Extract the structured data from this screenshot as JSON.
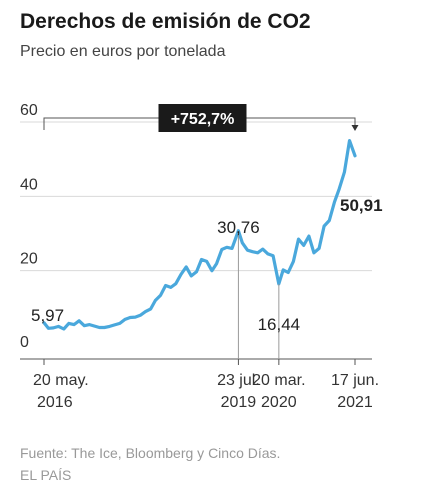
{
  "header": {
    "title": "Derechos de emisión de CO2",
    "subtitle": "Precio en euros por tonelada"
  },
  "footer": {
    "source": "Fuente: The Ice, Bloomberg y Cinco Días.",
    "publisher": "EL PAÍS"
  },
  "colors": {
    "line": "#4aa8dc",
    "badge": "#1a1a1a",
    "grid": "#d9d9d9",
    "axis": "#555555"
  },
  "chart_data": {
    "type": "line",
    "title": "Derechos de emisión de CO2",
    "subtitle": "Precio en euros por tonelada",
    "xlabel": "",
    "ylabel": "",
    "ylim": [
      0,
      60
    ],
    "yticks": [
      0,
      20,
      40,
      60
    ],
    "grid": true,
    "xlim": [
      "2016-05-20",
      "2021-06-17"
    ],
    "xticks": [
      {
        "date": "2016-05-20",
        "line1": "20 may.",
        "line2": "2016"
      },
      {
        "date": "2019-07-23",
        "line1": "23 jul.",
        "line2": "2019"
      },
      {
        "date": "2020-03-20",
        "line1": "20 mar.",
        "line2": "2020"
      },
      {
        "date": "2021-06-17",
        "line1": "17 jun.",
        "line2": "2021"
      }
    ],
    "series": [
      {
        "x": [
          "2016-05-20",
          "2016-06-15",
          "2016-07-15",
          "2016-08-15",
          "2016-09-15",
          "2016-10-15",
          "2016-11-15",
          "2016-12-15",
          "2017-01-15",
          "2017-02-15",
          "2017-03-15",
          "2017-04-15",
          "2017-05-15",
          "2017-06-15",
          "2017-07-15",
          "2017-08-15",
          "2017-09-15",
          "2017-10-15",
          "2017-11-15",
          "2017-12-15",
          "2018-01-15",
          "2018-02-15",
          "2018-03-15",
          "2018-04-15",
          "2018-05-15",
          "2018-06-15",
          "2018-07-15",
          "2018-08-15",
          "2018-09-15",
          "2018-10-15",
          "2018-11-15",
          "2018-12-15",
          "2019-01-15",
          "2019-02-15",
          "2019-03-15",
          "2019-04-15",
          "2019-05-15",
          "2019-06-15",
          "2019-07-23",
          "2019-08-15",
          "2019-09-15",
          "2019-10-15",
          "2019-11-15",
          "2019-12-15",
          "2020-01-15",
          "2020-02-15",
          "2020-03-20",
          "2020-04-15",
          "2020-05-15",
          "2020-06-15",
          "2020-07-15",
          "2020-08-15",
          "2020-09-15",
          "2020-10-15",
          "2020-11-15",
          "2020-12-15",
          "2021-01-15",
          "2021-02-15",
          "2021-03-15",
          "2021-04-15",
          "2021-05-15",
          "2021-06-17"
        ],
        "values": [
          5.97,
          4.5,
          4.6,
          5.0,
          4.3,
          5.8,
          5.5,
          6.5,
          5.2,
          5.5,
          5.1,
          4.7,
          4.7,
          5.0,
          5.4,
          5.8,
          6.9,
          7.4,
          7.5,
          8.0,
          9.0,
          9.7,
          12.0,
          13.4,
          16.0,
          15.5,
          16.5,
          19.0,
          21.0,
          18.6,
          19.7,
          23.0,
          22.5,
          20.0,
          21.9,
          25.7,
          26.3,
          26.0,
          30.76,
          27.5,
          25.5,
          25.1,
          24.8,
          25.8,
          24.5,
          24.0,
          16.44,
          20.2,
          19.5,
          22.5,
          28.5,
          26.8,
          29.3,
          24.8,
          26.0,
          32.0,
          33.5,
          38.5,
          42.0,
          46.5,
          55.0,
          50.91
        ]
      }
    ],
    "annotations": [
      {
        "date": "2016-05-20",
        "value": 5.97,
        "label": "5,97"
      },
      {
        "date": "2019-07-23",
        "value": 30.76,
        "label": "30,76"
      },
      {
        "date": "2020-03-20",
        "value": 16.44,
        "label": "16,44"
      },
      {
        "date": "2021-06-17",
        "value": 50.91,
        "label": "50,91"
      }
    ],
    "change_label": "+752,7%"
  }
}
